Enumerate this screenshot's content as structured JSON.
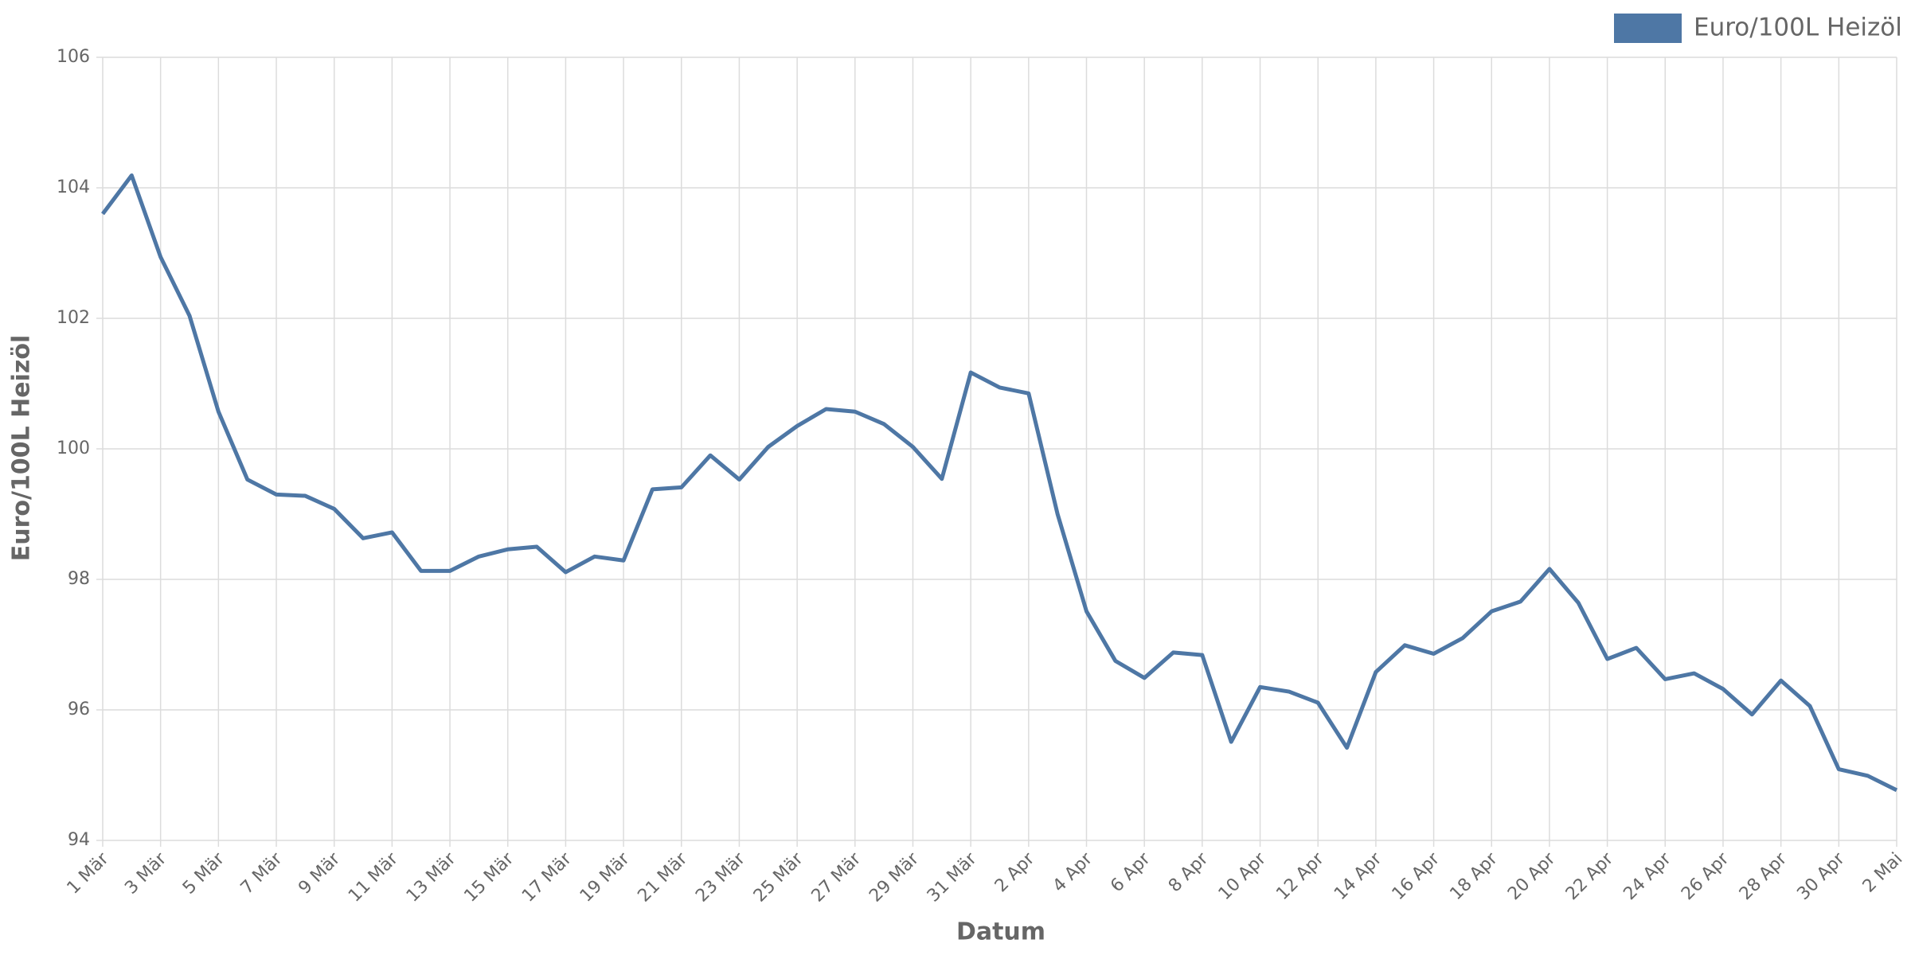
{
  "chart_data": {
    "type": "line",
    "categories": [
      "1 Mär",
      null,
      "3 Mär",
      null,
      "5 Mär",
      null,
      "7 Mär",
      null,
      "9 Mär",
      null,
      "11 Mär",
      null,
      "13 Mär",
      null,
      "15 Mär",
      null,
      "17 Mär",
      null,
      "19 Mär",
      null,
      "21 Mär",
      null,
      "23 Mär",
      null,
      "25 Mär",
      null,
      "27 Mär",
      null,
      "29 Mär",
      null,
      "31 Mär",
      null,
      "2 Apr",
      null,
      "4 Apr",
      null,
      "6 Apr",
      null,
      "8 Apr",
      null,
      "10 Apr",
      null,
      "12 Apr",
      null,
      "14 Apr",
      null,
      "16 Apr",
      null,
      "18 Apr",
      null,
      "20 Apr",
      null,
      "22 Apr",
      null,
      "24 Apr",
      null,
      "26 Apr",
      null,
      "28 Apr",
      null,
      "30 Apr",
      null,
      "2 Mai"
    ],
    "series": [
      {
        "name": "Euro/100L Heizöl",
        "color": "#4e77a5",
        "values": [
          103.6,
          104.19,
          102.94,
          102.04,
          100.57,
          99.53,
          99.3,
          99.28,
          99.08,
          98.63,
          98.72,
          98.13,
          98.13,
          98.35,
          98.46,
          98.5,
          98.11,
          98.35,
          98.29,
          99.38,
          99.41,
          99.9,
          99.53,
          100.03,
          100.35,
          100.61,
          100.57,
          100.38,
          100.03,
          99.54,
          101.17,
          100.94,
          100.85,
          99.0,
          97.51,
          96.75,
          96.49,
          96.88,
          96.84,
          95.51,
          96.35,
          96.28,
          96.11,
          95.42,
          96.58,
          96.99,
          96.86,
          97.1,
          97.51,
          97.66,
          98.16,
          97.64,
          96.78,
          96.95,
          96.47,
          96.56,
          96.32,
          95.93,
          96.45,
          96.06,
          95.09,
          94.99,
          94.77
        ]
      }
    ],
    "x_label": "Datum",
    "y_label": "Euro/100L Heizöl",
    "ylim": [
      94,
      106
    ],
    "yticks": [
      94,
      96,
      98,
      100,
      102,
      104,
      106
    ],
    "grid": true,
    "legend_position": "top-right"
  }
}
